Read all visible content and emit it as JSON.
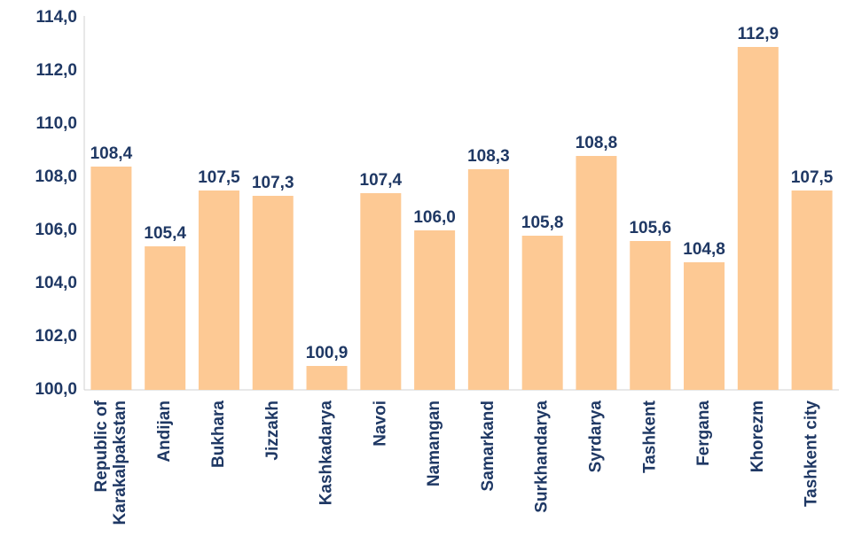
{
  "chart_data": {
    "type": "bar",
    "categories": [
      "Republic of Karakalpakstan",
      "Andijan",
      "Bukhara",
      "Jizzakh",
      "Kashkadarya",
      "Navoi",
      "Namangan",
      "Samarkand",
      "Surkhandarya",
      "Syrdarya",
      "Tashkent",
      "Fergana",
      "Khorezm",
      "Tashkent city"
    ],
    "values": [
      108.4,
      105.4,
      107.5,
      107.3,
      100.9,
      107.4,
      106.0,
      108.3,
      105.8,
      108.8,
      105.6,
      104.8,
      112.9,
      107.5
    ],
    "value_labels": [
      "108,4",
      "105,4",
      "107,5",
      "107,3",
      "100,9",
      "107,4",
      "106,0",
      "108,3",
      "105,8",
      "108,8",
      "105,6",
      "104,8",
      "112,9",
      "107,5"
    ],
    "color": "#fdc994",
    "ylim": [
      100,
      114
    ],
    "yticks": [
      {
        "value": 100,
        "label": "100,0"
      },
      {
        "value": 102,
        "label": "102,0"
      },
      {
        "value": 104,
        "label": "104,0"
      },
      {
        "value": 106,
        "label": "106,0"
      },
      {
        "value": 108,
        "label": "108,0"
      },
      {
        "value": 110,
        "label": "110,0"
      },
      {
        "value": 112,
        "label": "112,0"
      },
      {
        "value": 114,
        "label": "114,0"
      }
    ],
    "grid": false
  }
}
